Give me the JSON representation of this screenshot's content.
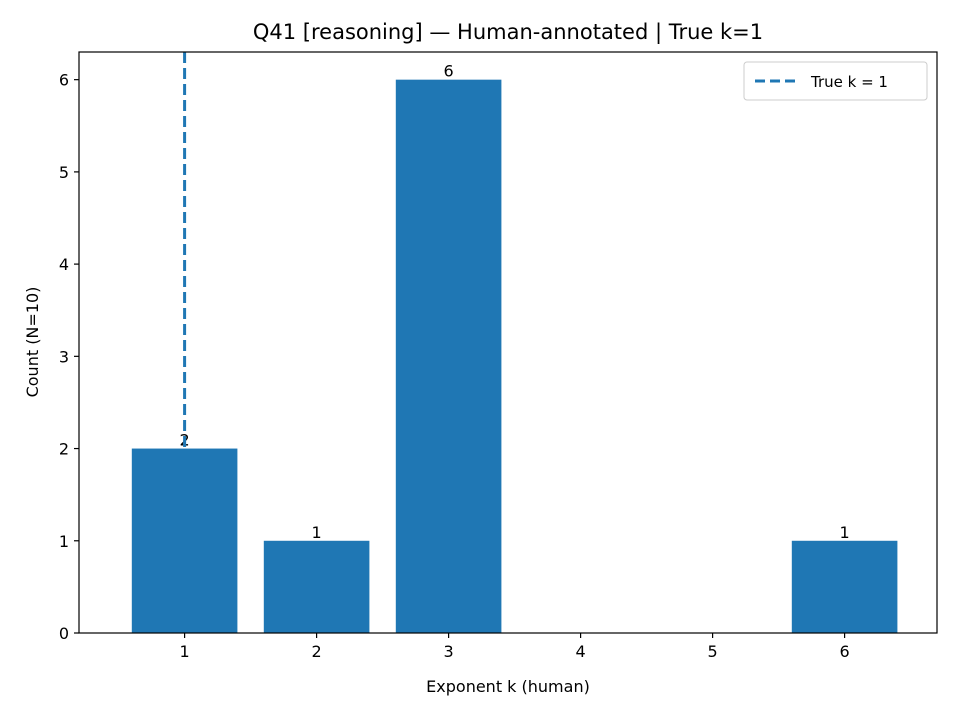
{
  "chart_data": {
    "type": "bar",
    "title": "Q41 [reasoning] — Human-annotated | True k=1",
    "xlabel": "Exponent k (human)",
    "ylabel": "Count (N=10)",
    "categories": [
      1,
      2,
      3,
      4,
      5,
      6
    ],
    "values": [
      2,
      1,
      6,
      0,
      0,
      1
    ],
    "bar_labels": [
      "2",
      "1",
      "6",
      "",
      "",
      "1"
    ],
    "xlim": [
      0.2,
      6.7
    ],
    "ylim": [
      0,
      6.3
    ],
    "yticks": [
      0,
      1,
      2,
      3,
      4,
      5,
      6
    ],
    "xticks": [
      1,
      2,
      3,
      4,
      5,
      6
    ],
    "reference_line": {
      "x": 1,
      "label": "True k = 1",
      "style": "dashed"
    },
    "legend": {
      "position": "top-right",
      "entries": [
        "True k = 1"
      ]
    },
    "grid": false,
    "colors": {
      "bar": "#1f77b4",
      "reference_line": "#1f77b4"
    }
  }
}
